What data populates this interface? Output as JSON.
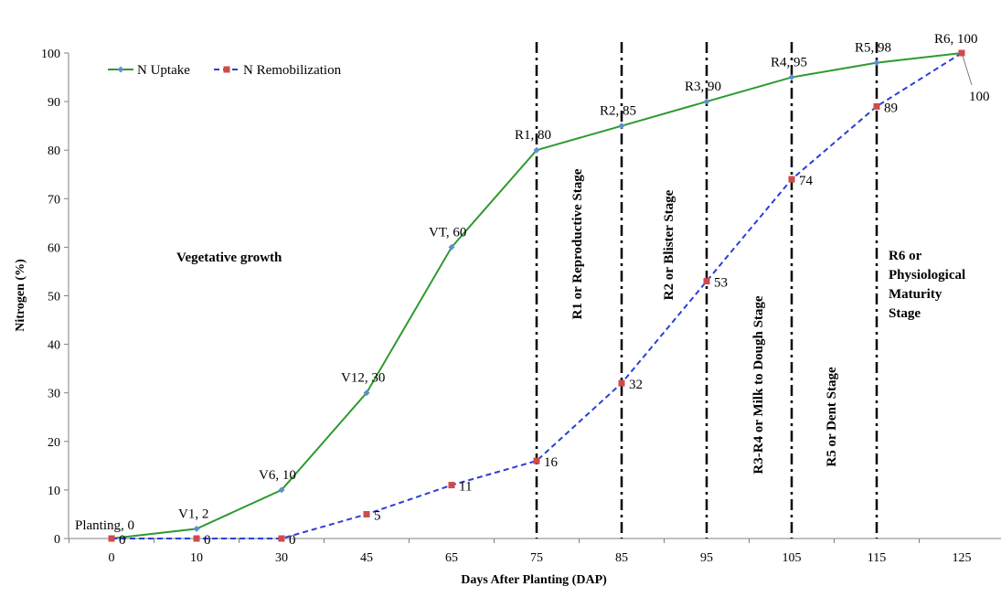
{
  "chart_data": {
    "type": "line",
    "xlabel": "Days After Planting (DAP)",
    "ylabel": "Nitrogen (%)",
    "categories": [
      "0",
      "10",
      "30",
      "45",
      "65",
      "75",
      "85",
      "95",
      "105",
      "115",
      "125"
    ],
    "ylim": [
      0,
      100
    ],
    "yticks": [
      "0",
      "10",
      "20",
      "30",
      "40",
      "50",
      "60",
      "70",
      "80",
      "90",
      "100"
    ],
    "grid": false,
    "legend_position": "top-left",
    "series": [
      {
        "name": "N Uptake",
        "color": "#2e9a2e",
        "marker_color": "#5b8fd0",
        "line_style": "solid",
        "values": [
          0,
          2,
          10,
          30,
          60,
          80,
          85,
          90,
          95,
          98,
          100
        ],
        "point_labels": [
          "Planting, 0",
          "V1, 2",
          "V6, 10",
          "V12, 30",
          "VT, 60",
          "R1, 80",
          "R2, 85",
          "R3, 90",
          "R4, 95",
          "R5, 98",
          "R6, 100"
        ]
      },
      {
        "name": "N Remobilization",
        "color": "#2a3fd8",
        "marker_color": "#d04a4a",
        "line_style": "dashed",
        "values": [
          0,
          0,
          0,
          5,
          11,
          16,
          32,
          53,
          74,
          89,
          100
        ],
        "point_labels": [
          "0",
          "0",
          "0",
          "5",
          "11",
          "16",
          "32",
          "53",
          "74",
          "89",
          "100"
        ]
      }
    ],
    "stage_lines": [
      "75",
      "85",
      "95",
      "105",
      "115"
    ],
    "annotations": [
      {
        "text": "Vegetative growth"
      },
      {
        "text": "R1 or Reproductive Stage"
      },
      {
        "text": "R2 or Blister Stage"
      },
      {
        "text": "R3-R4 or Milk to Dough Stage"
      },
      {
        "text": "R5 or Dent Stage"
      },
      {
        "text": "R6 or"
      },
      {
        "text": "Physiological"
      },
      {
        "text": "Maturity"
      },
      {
        "text": "Stage"
      }
    ]
  }
}
